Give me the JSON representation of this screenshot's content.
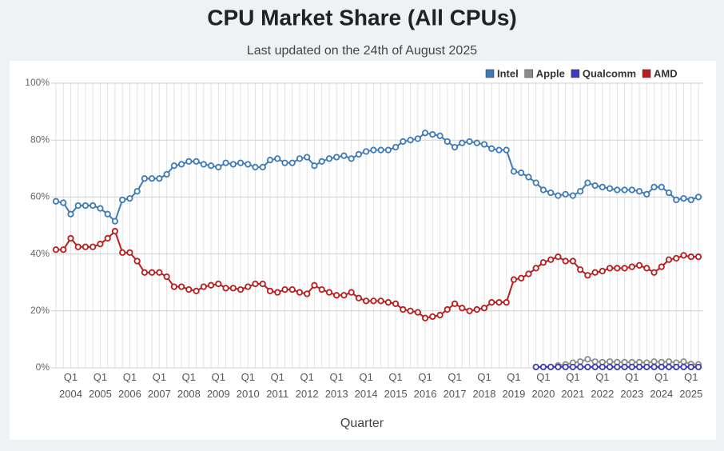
{
  "chart_data": {
    "type": "line",
    "title": "CPU Market Share (All CPUs)",
    "subtitle": "Last updated on the 24th of August 2025",
    "x_label": "Quarter",
    "categories": [
      null,
      null,
      "Q1 2004",
      null,
      null,
      null,
      "Q1 2005",
      null,
      null,
      null,
      "Q1 2006",
      null,
      null,
      null,
      "Q1 2007",
      null,
      null,
      null,
      "Q1 2008",
      null,
      null,
      null,
      "Q1 2009",
      null,
      null,
      null,
      "Q1 2010",
      null,
      null,
      null,
      "Q1 2011",
      null,
      null,
      null,
      "Q1 2012",
      null,
      null,
      null,
      "Q1 2013",
      null,
      null,
      null,
      "Q1 2014",
      null,
      null,
      null,
      "Q1 2015",
      null,
      null,
      null,
      "Q1 2016",
      null,
      null,
      null,
      "Q1 2017",
      null,
      null,
      null,
      "Q1 2018",
      null,
      null,
      null,
      "Q1 2019",
      null,
      null,
      null,
      "Q1 2020",
      null,
      null,
      null,
      "Q1 2021",
      null,
      null,
      null,
      "Q1 2022",
      null,
      null,
      null,
      "Q1 2023",
      null,
      null,
      null,
      "Q1 2024",
      null,
      null,
      null,
      "Q1 2025",
      null
    ],
    "series": [
      {
        "name": "Intel",
        "color": "#3d7ab8",
        "values": [
          58.5,
          58,
          54,
          57,
          57,
          57,
          56,
          54,
          51.5,
          59,
          59.5,
          62,
          66.5,
          66.5,
          66.5,
          68,
          71,
          71.5,
          72.5,
          72.5,
          71.5,
          71,
          70.5,
          72,
          71.5,
          72,
          71.5,
          70.5,
          70.5,
          73,
          73.5,
          72,
          72,
          73.5,
          74,
          71,
          72.5,
          73.5,
          74,
          74.5,
          73.5,
          75,
          76,
          76.5,
          76.5,
          76.5,
          77.5,
          79.5,
          80,
          80.5,
          82.5,
          82,
          81.5,
          79.5,
          77.5,
          79,
          79.5,
          79,
          78.5,
          77,
          76.5,
          76.5,
          69,
          68.5,
          67,
          65,
          62.5,
          61.5,
          60.5,
          61,
          60.5,
          62,
          65,
          64,
          63.5,
          63,
          62.5,
          62.5,
          62.5,
          62,
          61,
          63.5,
          63.5,
          61.5,
          59,
          59.5,
          59,
          60
        ]
      },
      {
        "name": "Apple",
        "color": "#8c8c8c",
        "values": [
          null,
          null,
          null,
          null,
          null,
          null,
          null,
          null,
          null,
          null,
          null,
          null,
          null,
          null,
          null,
          null,
          null,
          null,
          null,
          null,
          null,
          null,
          null,
          null,
          null,
          null,
          null,
          null,
          null,
          null,
          null,
          null,
          null,
          null,
          null,
          null,
          null,
          null,
          null,
          null,
          null,
          null,
          null,
          null,
          null,
          null,
          null,
          null,
          null,
          null,
          null,
          null,
          null,
          null,
          null,
          null,
          null,
          null,
          null,
          null,
          null,
          null,
          null,
          null,
          null,
          null,
          null,
          null,
          0.8,
          1.2,
          1.8,
          2.2,
          3,
          2.2,
          2,
          2.2,
          2,
          2,
          2,
          2,
          1.8,
          2.2,
          2,
          2.2,
          1.8,
          2.2,
          1.3,
          1.2
        ]
      },
      {
        "name": "Qualcomm",
        "color": "#3b3bc0",
        "values": [
          null,
          null,
          null,
          null,
          null,
          null,
          null,
          null,
          null,
          null,
          null,
          null,
          null,
          null,
          null,
          null,
          null,
          null,
          null,
          null,
          null,
          null,
          null,
          null,
          null,
          null,
          null,
          null,
          null,
          null,
          null,
          null,
          null,
          null,
          null,
          null,
          null,
          null,
          null,
          null,
          null,
          null,
          null,
          null,
          null,
          null,
          null,
          null,
          null,
          null,
          null,
          null,
          null,
          null,
          null,
          null,
          null,
          null,
          null,
          null,
          null,
          null,
          null,
          null,
          null,
          0.3,
          0.3,
          0.3,
          0.3,
          0.3,
          0.3,
          0.3,
          0.3,
          0.3,
          0.3,
          0.3,
          0.3,
          0.3,
          0.3,
          0.3,
          0.3,
          0.3,
          0.3,
          0.3,
          0.3,
          0.3,
          0.3,
          0.3
        ]
      },
      {
        "name": "AMD",
        "color": "#b81c1c",
        "values": [
          41.5,
          41.5,
          45.5,
          42.5,
          42.5,
          42.5,
          43.5,
          45.5,
          48,
          40.5,
          40.5,
          37.5,
          33.5,
          33.5,
          33.5,
          32,
          28.5,
          28.5,
          27.5,
          27,
          28.5,
          29,
          29.5,
          28,
          28,
          27.5,
          28.5,
          29.5,
          29.5,
          27,
          26.5,
          27.5,
          27.5,
          26.5,
          26,
          29,
          27.5,
          26.5,
          25.5,
          25.5,
          26.5,
          24.5,
          23.5,
          23.5,
          23.5,
          23,
          22.5,
          20.5,
          20,
          19.5,
          17.5,
          18,
          18.5,
          20.5,
          22.5,
          21,
          20,
          20.5,
          21,
          23,
          23,
          23,
          31,
          31.5,
          33,
          35,
          37,
          38,
          39,
          37.5,
          37.5,
          34.5,
          32.5,
          33.5,
          34,
          35,
          35,
          35,
          35.5,
          36,
          35,
          33.5,
          35.5,
          38,
          38.5,
          39.5,
          39,
          39
        ]
      }
    ],
    "ylim": [
      0,
      100
    ],
    "yticks": [
      {
        "value": 0,
        "label": "0%"
      },
      {
        "value": 20,
        "label": "20%"
      },
      {
        "value": 40,
        "label": "40%"
      },
      {
        "value": 60,
        "label": "60%"
      },
      {
        "value": 80,
        "label": "80%"
      },
      {
        "value": 100,
        "label": "100%"
      }
    ],
    "grid": true,
    "legend": "top-right"
  }
}
